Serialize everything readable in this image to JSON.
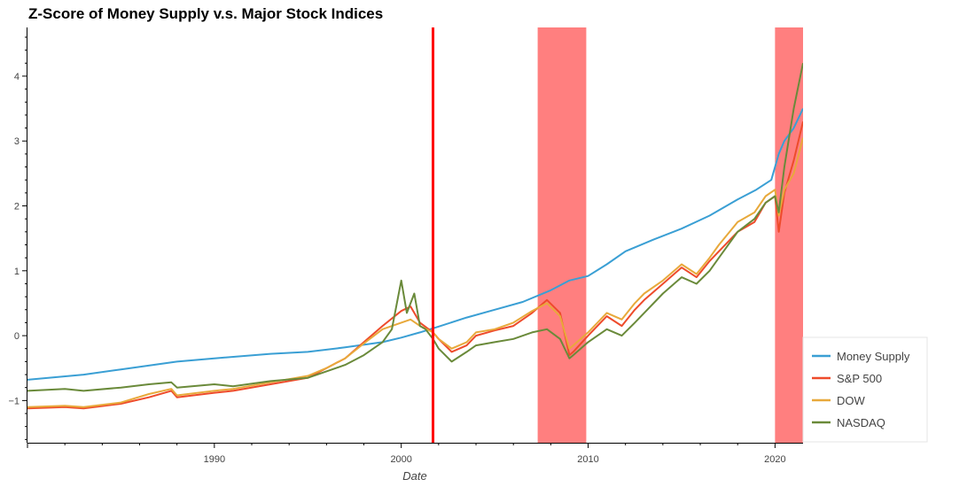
{
  "chart_data": {
    "type": "line",
    "title": "Z-Score of Money Supply v.s. Major Stock Indices",
    "xlabel": "Date",
    "ylabel": "",
    "xlim": [
      1980.0,
      2021.5
    ],
    "ylim": [
      -1.65,
      4.75
    ],
    "x_ticks": [
      1990,
      2000,
      2010,
      2020
    ],
    "y_ticks": [
      -1,
      0,
      1,
      2,
      3,
      4
    ],
    "y_tick_labels": [
      "−1",
      "0",
      "1",
      "2",
      "3",
      "4"
    ],
    "grid": false,
    "legend_position": "bottom-right",
    "vertical_line": {
      "x": 2001.7,
      "color": "#ff0000"
    },
    "shaded_regions": [
      {
        "x0": 2007.3,
        "x1": 2009.9,
        "color": "#ff0000"
      },
      {
        "x0": 2020.0,
        "x1": 2021.5,
        "color": "#ff0000"
      }
    ],
    "series": [
      {
        "name": "Money Supply",
        "color": "#3a9fd4",
        "x": [
          1980.0,
          1983.0,
          1985.0,
          1988.0,
          1990.0,
          1993.0,
          1995.0,
          1997.0,
          1999.0,
          2000.0,
          2001.0,
          2002.0,
          2003.5,
          2005.0,
          2006.5,
          2008.0,
          2009.0,
          2010.0,
          2011.0,
          2012.0,
          2013.5,
          2015.0,
          2016.5,
          2018.0,
          2019.0,
          2019.8,
          2020.2,
          2020.5,
          2021.0,
          2021.5
        ],
        "y": [
          -0.68,
          -0.6,
          -0.52,
          -0.4,
          -0.35,
          -0.28,
          -0.25,
          -0.18,
          -0.1,
          -0.03,
          0.05,
          0.14,
          0.28,
          0.4,
          0.52,
          0.7,
          0.85,
          0.92,
          1.1,
          1.3,
          1.48,
          1.65,
          1.85,
          2.1,
          2.25,
          2.4,
          2.8,
          3.0,
          3.2,
          3.5
        ]
      },
      {
        "name": "S&P 500",
        "color": "#ee4b2b",
        "x": [
          1980.0,
          1982.0,
          1983.0,
          1985.0,
          1986.5,
          1987.7,
          1988.0,
          1990.0,
          1991.0,
          1993.0,
          1995.0,
          1996.0,
          1997.0,
          1998.0,
          1999.0,
          2000.0,
          2000.5,
          2001.0,
          2001.7,
          2002.0,
          2002.7,
          2003.5,
          2004.0,
          2005.0,
          2006.0,
          2007.0,
          2007.8,
          2008.5,
          2009.0,
          2009.2,
          2010.0,
          2011.0,
          2011.8,
          2012.5,
          2013.0,
          2014.0,
          2015.0,
          2015.8,
          2016.5,
          2017.0,
          2018.0,
          2018.9,
          2019.5,
          2020.0,
          2020.2,
          2020.5,
          2021.0,
          2021.5
        ],
        "y": [
          -1.12,
          -1.1,
          -1.12,
          -1.05,
          -0.95,
          -0.85,
          -0.95,
          -0.88,
          -0.85,
          -0.75,
          -0.65,
          -0.5,
          -0.35,
          -0.1,
          0.15,
          0.38,
          0.45,
          0.2,
          0.05,
          -0.05,
          -0.25,
          -0.15,
          0.0,
          0.08,
          0.15,
          0.35,
          0.55,
          0.35,
          -0.3,
          -0.25,
          0.0,
          0.3,
          0.15,
          0.4,
          0.55,
          0.8,
          1.05,
          0.9,
          1.15,
          1.3,
          1.6,
          1.75,
          2.05,
          2.15,
          1.6,
          2.2,
          2.7,
          3.3
        ]
      },
      {
        "name": "DOW",
        "color": "#e8a93b",
        "x": [
          1980.0,
          1982.0,
          1983.0,
          1985.0,
          1986.5,
          1987.7,
          1988.0,
          1990.0,
          1991.0,
          1993.0,
          1995.0,
          1996.0,
          1997.0,
          1998.0,
          1999.0,
          2000.0,
          2000.5,
          2001.0,
          2001.7,
          2002.0,
          2002.7,
          2003.5,
          2004.0,
          2005.0,
          2006.0,
          2007.0,
          2007.8,
          2008.5,
          2009.0,
          2009.2,
          2010.0,
          2011.0,
          2011.8,
          2012.5,
          2013.0,
          2014.0,
          2015.0,
          2015.8,
          2016.5,
          2017.0,
          2018.0,
          2018.9,
          2019.5,
          2020.0,
          2020.2,
          2020.5,
          2021.0,
          2021.5
        ],
        "y": [
          -1.1,
          -1.08,
          -1.1,
          -1.03,
          -0.9,
          -0.82,
          -0.92,
          -0.85,
          -0.82,
          -0.72,
          -0.62,
          -0.5,
          -0.35,
          -0.12,
          0.1,
          0.2,
          0.25,
          0.15,
          0.05,
          -0.05,
          -0.2,
          -0.1,
          0.05,
          0.1,
          0.2,
          0.38,
          0.5,
          0.3,
          -0.2,
          -0.15,
          0.05,
          0.35,
          0.25,
          0.5,
          0.65,
          0.85,
          1.1,
          0.95,
          1.2,
          1.4,
          1.75,
          1.9,
          2.15,
          2.25,
          1.85,
          2.25,
          2.5,
          3.05
        ]
      },
      {
        "name": "NASDAQ",
        "color": "#6a8a3a",
        "x": [
          1980.0,
          1982.0,
          1983.0,
          1985.0,
          1986.5,
          1987.7,
          1988.0,
          1990.0,
          1991.0,
          1993.0,
          1995.0,
          1996.0,
          1997.0,
          1998.0,
          1999.0,
          1999.5,
          2000.0,
          2000.3,
          2000.7,
          2001.0,
          2001.3,
          2001.7,
          2002.0,
          2002.7,
          2003.5,
          2004.0,
          2005.0,
          2006.0,
          2007.0,
          2007.8,
          2008.5,
          2009.0,
          2009.2,
          2010.0,
          2011.0,
          2011.8,
          2012.5,
          2013.0,
          2014.0,
          2015.0,
          2015.8,
          2016.5,
          2017.0,
          2018.0,
          2018.9,
          2019.5,
          2020.0,
          2020.2,
          2020.5,
          2021.0,
          2021.5
        ],
        "y": [
          -0.85,
          -0.82,
          -0.85,
          -0.8,
          -0.75,
          -0.72,
          -0.8,
          -0.75,
          -0.78,
          -0.7,
          -0.65,
          -0.55,
          -0.45,
          -0.3,
          -0.1,
          0.1,
          0.85,
          0.35,
          0.65,
          0.15,
          0.1,
          -0.05,
          -0.2,
          -0.4,
          -0.25,
          -0.15,
          -0.1,
          -0.05,
          0.05,
          0.1,
          -0.05,
          -0.35,
          -0.3,
          -0.1,
          0.1,
          0.0,
          0.2,
          0.35,
          0.65,
          0.9,
          0.8,
          1.0,
          1.2,
          1.6,
          1.8,
          2.05,
          2.15,
          1.9,
          2.6,
          3.5,
          4.2
        ]
      }
    ]
  }
}
